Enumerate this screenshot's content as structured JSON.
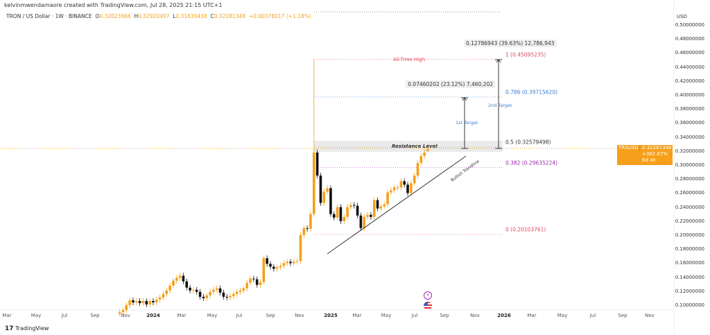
{
  "header": {
    "credit": "kelvinmwendamaore created with TradingView.com, Jul 28, 2025 21:15 UTC+1",
    "symbol": "TRON / US Dollar · 1W · BINANCE",
    "o_label": "O",
    "o": "0.32023966",
    "h_label": "H",
    "h": "0.32920497",
    "l_label": "L",
    "l": "0.31830438",
    "c_label": "C",
    "c": "0.32281348",
    "change": "+0.00378017 (+1.18%)"
  },
  "price_axis": {
    "currency": "USD",
    "ticks": [
      "0.50000000",
      "0.48000000",
      "0.46000000",
      "0.44000000",
      "0.42000000",
      "0.40000000",
      "0.38000000",
      "0.36000000",
      "0.34000000",
      "0.32000000",
      "0.30000000",
      "0.28000000",
      "0.26000000",
      "0.24000000",
      "0.22000000",
      "0.20000000",
      "0.18000000",
      "0.16000000",
      "0.14000000",
      "0.12000000",
      "0.10000000"
    ]
  },
  "time_axis": {
    "ticks": [
      {
        "label": "Mar",
        "bold": false
      },
      {
        "label": "May",
        "bold": false
      },
      {
        "label": "Jul",
        "bold": false
      },
      {
        "label": "Sep",
        "bold": false
      },
      {
        "label": "Nov",
        "bold": false
      },
      {
        "label": "2024",
        "bold": true
      },
      {
        "label": "Mar",
        "bold": false
      },
      {
        "label": "May",
        "bold": false
      },
      {
        "label": "Jul",
        "bold": false
      },
      {
        "label": "Sep",
        "bold": false
      },
      {
        "label": "Nov",
        "bold": false
      },
      {
        "label": "2025",
        "bold": true
      },
      {
        "label": "Mar",
        "bold": false
      },
      {
        "label": "May",
        "bold": false
      },
      {
        "label": "Jul",
        "bold": false
      },
      {
        "label": "Sep",
        "bold": false
      },
      {
        "label": "Nov",
        "bold": false
      },
      {
        "label": "2026",
        "bold": true
      },
      {
        "label": "Mar",
        "bold": false
      },
      {
        "label": "May",
        "bold": false
      },
      {
        "label": "Jul",
        "bold": false
      },
      {
        "label": "Sep",
        "bold": false
      },
      {
        "label": "Nov",
        "bold": false
      }
    ]
  },
  "price_tag": {
    "symbol": "TRXUSD",
    "price": "0.32281348",
    "change": "+362.87%",
    "countdown": "6d 4h"
  },
  "annotations": {
    "ath": "All-Time High",
    "resistance": "Resistance Level",
    "trendline": "Bullish Trendline",
    "target1": "1st Target",
    "target2": "2nd Target",
    "measure1": "0.07460202 (23.12%) 7,460,202",
    "measure2": "0.12786943 (39.63%) 12,786,943"
  },
  "fib_levels": [
    {
      "label": "1 (0.45095235)",
      "price": 0.45095235,
      "color": "#e0475b"
    },
    {
      "label": "0.786 (0.39715620)",
      "price": 0.3971562,
      "color": "#3a7bd5"
    },
    {
      "label": "0.5 (0.32579498)",
      "price": 0.32579498,
      "color": "#333333"
    },
    {
      "label": "0.382 (0.29635224)",
      "price": 0.29635224,
      "color": "#9c27b0"
    },
    {
      "label": "0 (0.20103761)",
      "price": 0.20103761,
      "color": "#e0475b"
    }
  ],
  "footer": {
    "brand": "TradingView"
  },
  "colors": {
    "up": "#f5a01a",
    "down": "#111111",
    "price_line": "#f5a01a"
  },
  "chart_data": {
    "type": "candlestick",
    "interval": "1W",
    "symbol": "TRXUSD",
    "ylim": [
      0.09,
      0.51
    ],
    "first_open": 0.088,
    "closes": [
      0.09,
      0.093,
      0.1,
      0.107,
      0.104,
      0.106,
      0.103,
      0.106,
      0.101,
      0.106,
      0.104,
      0.108,
      0.111,
      0.116,
      0.121,
      0.128,
      0.135,
      0.139,
      0.142,
      0.134,
      0.125,
      0.121,
      0.122,
      0.119,
      0.112,
      0.11,
      0.114,
      0.119,
      0.122,
      0.124,
      0.118,
      0.112,
      0.111,
      0.113,
      0.116,
      0.119,
      0.121,
      0.124,
      0.132,
      0.138,
      0.137,
      0.129,
      0.133,
      0.167,
      0.159,
      0.155,
      0.152,
      0.154,
      0.156,
      0.16,
      0.162,
      0.16,
      0.162,
      0.163,
      0.2,
      0.21,
      0.209,
      0.23,
      0.318,
      0.285,
      0.246,
      0.262,
      0.267,
      0.23,
      0.225,
      0.24,
      0.22,
      0.226,
      0.24,
      0.243,
      0.242,
      0.228,
      0.21,
      0.226,
      0.229,
      0.226,
      0.25,
      0.238,
      0.241,
      0.244,
      0.261,
      0.264,
      0.268,
      0.268,
      0.277,
      0.272,
      0.26,
      0.274,
      0.285,
      0.303,
      0.313,
      0.318,
      0.3228
    ],
    "ath_high": 0.451,
    "last": {
      "open": 0.32023966,
      "high": 0.32920497,
      "low": 0.31830438,
      "close": 0.32281348
    }
  }
}
